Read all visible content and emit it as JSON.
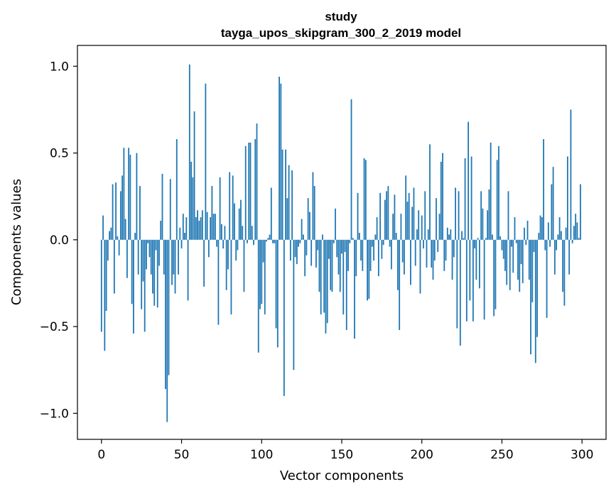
{
  "chart_data": {
    "type": "bar",
    "title_line1": "study",
    "title_line2": "tayga_upos_skipgram_300_2_2019 model",
    "xlabel": "Vector components",
    "ylabel": "Components values",
    "xlim": [
      -15,
      315
    ],
    "ylim": [
      -1.15,
      1.12
    ],
    "x_ticks": [
      0,
      50,
      100,
      150,
      200,
      250,
      300
    ],
    "x_tick_labels": [
      "0",
      "50",
      "100",
      "150",
      "200",
      "250",
      "300"
    ],
    "y_ticks": [
      -1.0,
      -0.5,
      0.0,
      0.5,
      1.0
    ],
    "y_tick_labels": [
      "−1.0",
      "−0.5",
      "0.0",
      "0.5",
      "1.0"
    ],
    "bar_color": "#1f77b4",
    "grid": false,
    "values": [
      -0.53,
      0.14,
      -0.64,
      -0.41,
      -0.12,
      0.05,
      0.07,
      0.32,
      -0.31,
      0.33,
      0.02,
      -0.09,
      0.28,
      0.37,
      0.53,
      0.12,
      -0.22,
      0.53,
      0.49,
      -0.37,
      -0.54,
      0.04,
      0.5,
      -0.2,
      0.31,
      -0.4,
      -0.24,
      -0.53,
      -0.17,
      -0.02,
      -0.1,
      -0.2,
      -0.31,
      -0.38,
      -0.06,
      -0.39,
      -0.15,
      0.11,
      0.38,
      -0.2,
      -0.86,
      -1.05,
      -0.78,
      0.35,
      -0.26,
      -0.2,
      -0.31,
      0.58,
      -0.2,
      0.07,
      -0.05,
      0.15,
      0.04,
      0.13,
      -0.35,
      1.01,
      0.45,
      0.36,
      0.74,
      0.13,
      0.17,
      0.11,
      0.13,
      0.17,
      -0.27,
      0.9,
      0.16,
      -0.1,
      0.13,
      0.31,
      0.15,
      0.15,
      -0.04,
      -0.49,
      0.36,
      0.09,
      -0.05,
      0.08,
      -0.29,
      -0.17,
      0.39,
      -0.43,
      0.37,
      0.21,
      -0.12,
      -0.06,
      0.18,
      0.23,
      0.08,
      -0.3,
      0.54,
      -0.02,
      0.56,
      0.56,
      0.08,
      -0.03,
      0.58,
      0.67,
      -0.65,
      -0.4,
      -0.37,
      -0.13,
      -0.43,
      -0.01,
      0.01,
      0.03,
      0.3,
      -0.02,
      -0.02,
      -0.51,
      -0.62,
      0.94,
      0.9,
      0.52,
      -0.9,
      0.52,
      0.24,
      0.43,
      -0.12,
      0.4,
      -0.75,
      -0.1,
      -0.14,
      -0.04,
      -0.02,
      0.12,
      0.03,
      -0.21,
      -0.09,
      0.24,
      0.16,
      -0.15,
      0.39,
      0.31,
      -0.16,
      -0.06,
      -0.3,
      -0.43,
      0.03,
      -0.42,
      -0.54,
      -0.48,
      -0.11,
      -0.29,
      -0.3,
      -0.02,
      0.18,
      -0.1,
      -0.2,
      -0.3,
      -0.08,
      -0.43,
      -0.07,
      -0.52,
      -0.18,
      -0.02,
      0.81,
      0.01,
      -0.57,
      -0.21,
      0.27,
      0.04,
      -0.12,
      -0.18,
      0.47,
      0.46,
      -0.35,
      -0.34,
      -0.18,
      -0.04,
      -0.12,
      0.03,
      0.13,
      -0.21,
      0.27,
      -0.11,
      -0.03,
      0.23,
      0.28,
      0.31,
      -0.04,
      -0.17,
      0.15,
      0.26,
      0.04,
      -0.29,
      -0.52,
      0.15,
      -0.13,
      -0.2,
      0.37,
      0.22,
      0.27,
      -0.26,
      0.19,
      0.3,
      -0.15,
      0.06,
      0.17,
      -0.31,
      0.14,
      -0.05,
      0.28,
      -0.16,
      0.06,
      0.55,
      -0.16,
      -0.23,
      -0.12,
      0.24,
      -0.07,
      0.15,
      0.45,
      0.5,
      -0.18,
      -0.12,
      0.07,
      0.03,
      0.06,
      -0.23,
      -0.1,
      0.3,
      -0.51,
      0.28,
      -0.61,
      0.05,
      0.01,
      0.47,
      -0.47,
      0.68,
      -0.35,
      0.48,
      -0.47,
      -0.05,
      -0.23,
      0.01,
      -0.28,
      0.28,
      0.18,
      -0.46,
      0.01,
      0.17,
      0.29,
      0.56,
      0.03,
      -0.44,
      -0.4,
      0.46,
      0.54,
      0.02,
      -0.06,
      -0.11,
      -0.18,
      -0.26,
      0.28,
      -0.29,
      -0.04,
      -0.19,
      0.13,
      -0.02,
      -0.23,
      -0.3,
      -0.14,
      -0.25,
      0.07,
      -0.03,
      0.11,
      -0.23,
      -0.66,
      -0.36,
      -0.07,
      -0.71,
      -0.56,
      0.04,
      0.14,
      0.13,
      0.58,
      -0.06,
      -0.45,
      0.1,
      -0.04,
      0.32,
      0.42,
      -0.2,
      -0.06,
      0.03,
      0.13,
      0.05,
      -0.3,
      -0.38,
      0.07,
      0.48,
      -0.2,
      0.75,
      -0.02,
      0.08,
      0.15,
      0.1,
      0.01,
      0.32
    ]
  }
}
